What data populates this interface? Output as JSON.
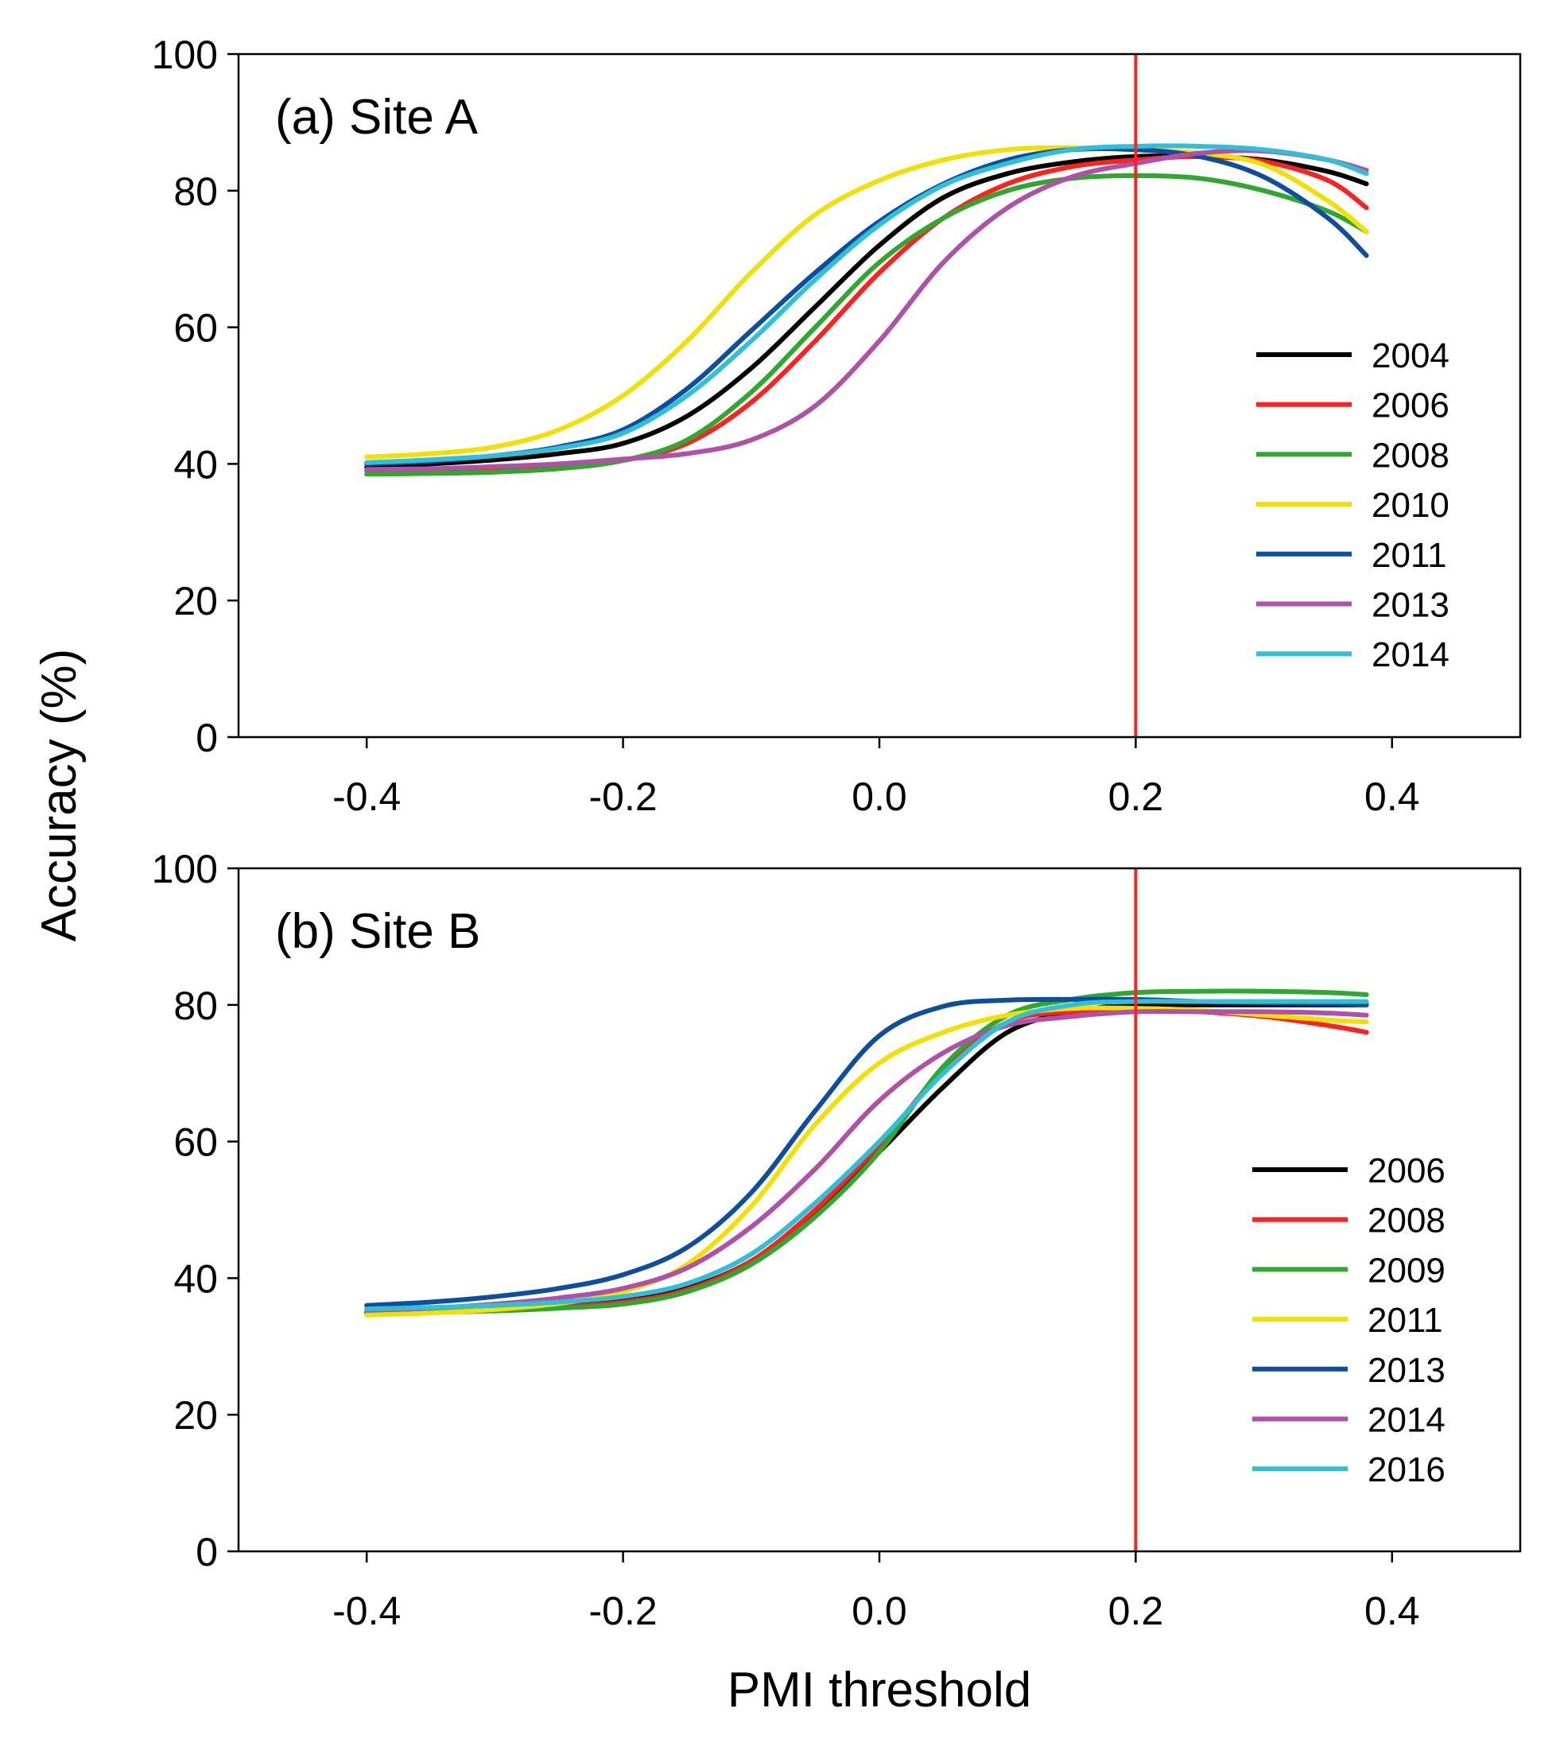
{
  "chart_data": {
    "shared": {
      "xlabel": "PMI threshold",
      "ylabel": "Accuracy (%)",
      "xlim": [
        -0.5,
        0.5
      ],
      "ylim": [
        0,
        100
      ],
      "xticks": [
        -0.4,
        -0.2,
        0.0,
        0.2,
        0.4
      ],
      "xtick_labels": [
        "-0.4",
        "-0.2",
        "0.0",
        "0.2",
        "0.4"
      ],
      "yticks": [
        0,
        20,
        40,
        60,
        80,
        100
      ],
      "ytick_labels": [
        "0",
        "20",
        "40",
        "60",
        "80",
        "100"
      ],
      "vline_x": 0.2,
      "vline_color": "#ff2020"
    },
    "panels": [
      {
        "type": "line",
        "title": "(a) Site A",
        "legend_position": "right",
        "x": [
          -0.4,
          -0.35,
          -0.3,
          -0.25,
          -0.2,
          -0.15,
          -0.1,
          -0.05,
          0.0,
          0.05,
          0.1,
          0.15,
          0.2,
          0.25,
          0.3,
          0.35,
          0.38
        ],
        "series": [
          {
            "name": "2004",
            "color": "#000000",
            "values": [
              39.5,
              40.0,
              40.6,
              41.5,
              43.0,
              47.0,
              54.0,
              63.0,
              72.0,
              79.0,
              82.5,
              84.2,
              85.0,
              85.0,
              84.5,
              82.8,
              81.0
            ]
          },
          {
            "name": "2006",
            "color": "#ff2020",
            "values": [
              39.0,
              39.1,
              39.3,
              39.6,
              40.5,
              43.0,
              49.0,
              58.0,
              68.0,
              76.0,
              81.0,
              83.5,
              84.5,
              85.0,
              84.3,
              81.5,
              77.5
            ]
          },
          {
            "name": "2008",
            "color": "#2ea82e",
            "values": [
              38.5,
              38.6,
              38.8,
              39.3,
              40.5,
              43.5,
              50.5,
              60.0,
              69.5,
              76.0,
              80.0,
              81.8,
              82.2,
              81.8,
              80.0,
              77.0,
              74.0
            ]
          },
          {
            "name": "2010",
            "color": "#f2e000",
            "values": [
              41.0,
              41.5,
              42.5,
              45.0,
              50.0,
              58.0,
              68.0,
              76.5,
              81.5,
              84.5,
              86.0,
              86.3,
              86.0,
              85.5,
              83.8,
              78.5,
              74.0
            ]
          },
          {
            "name": "2011",
            "color": "#0d4f9e",
            "values": [
              40.0,
              40.4,
              41.2,
              42.5,
              45.0,
              51.0,
              59.5,
              68.0,
              75.5,
              81.0,
              84.5,
              86.0,
              86.0,
              85.0,
              82.0,
              76.0,
              70.5
            ]
          },
          {
            "name": "2013",
            "color": "#b050a8",
            "values": [
              39.2,
              39.3,
              39.6,
              40.0,
              40.7,
              41.5,
              43.5,
              48.5,
              58.0,
              69.5,
              77.5,
              82.0,
              84.0,
              85.5,
              85.8,
              84.5,
              83.0
            ]
          },
          {
            "name": "2014",
            "color": "#2ec0d8",
            "values": [
              40.2,
              40.6,
              41.2,
              42.3,
              44.5,
              50.0,
              58.0,
              67.0,
              75.0,
              80.8,
              84.0,
              86.0,
              86.5,
              86.5,
              86.0,
              84.5,
              82.5
            ]
          }
        ]
      },
      {
        "type": "line",
        "title": "(b) Site B",
        "legend_position": "right",
        "x": [
          -0.4,
          -0.35,
          -0.3,
          -0.25,
          -0.2,
          -0.15,
          -0.1,
          -0.05,
          0.0,
          0.05,
          0.1,
          0.15,
          0.2,
          0.25,
          0.3,
          0.35,
          0.38
        ],
        "series": [
          {
            "name": "2006",
            "color": "#000000",
            "values": [
              35.0,
              35.2,
              35.5,
              36.0,
              36.8,
              38.5,
              42.5,
              49.5,
              58.5,
              68.0,
              76.0,
              79.0,
              80.0,
              80.0,
              80.0,
              80.0,
              80.0
            ]
          },
          {
            "name": "2008",
            "color": "#ff2020",
            "values": [
              34.8,
              35.0,
              35.3,
              35.8,
              36.5,
              38.3,
              42.5,
              50.0,
              59.5,
              70.5,
              77.5,
              79.0,
              79.2,
              79.0,
              78.3,
              77.0,
              76.0
            ]
          },
          {
            "name": "2009",
            "color": "#2ea82e",
            "values": [
              34.8,
              35.0,
              35.2,
              35.6,
              36.2,
              38.0,
              42.0,
              49.0,
              58.5,
              71.0,
              78.5,
              80.8,
              81.8,
              82.0,
              82.0,
              81.8,
              81.5
            ]
          },
          {
            "name": "2011",
            "color": "#f2e000",
            "values": [
              34.6,
              34.9,
              35.4,
              36.3,
              38.0,
              42.0,
              50.5,
              62.5,
              71.5,
              76.0,
              78.5,
              79.5,
              79.5,
              79.2,
              78.5,
              77.8,
              77.5
            ]
          },
          {
            "name": "2013",
            "color": "#0d4f9e",
            "values": [
              36.0,
              36.5,
              37.3,
              38.5,
              40.5,
              44.5,
              52.5,
              64.5,
              75.5,
              79.8,
              80.7,
              80.8,
              80.8,
              80.5,
              80.3,
              80.2,
              80.0
            ]
          },
          {
            "name": "2014",
            "color": "#b050a8",
            "values": [
              35.3,
              35.6,
              36.2,
              37.1,
              38.5,
              41.5,
              47.5,
              56.0,
              66.0,
              73.0,
              77.0,
              78.3,
              79.0,
              79.0,
              79.0,
              78.8,
              78.5
            ]
          },
          {
            "name": "2016",
            "color": "#2ec0d8",
            "values": [
              35.5,
              35.7,
              36.0,
              36.5,
              37.3,
              39.2,
              43.5,
              51.0,
              60.0,
              70.0,
              77.5,
              80.0,
              80.5,
              80.5,
              80.5,
              80.5,
              80.5
            ]
          }
        ]
      }
    ]
  }
}
